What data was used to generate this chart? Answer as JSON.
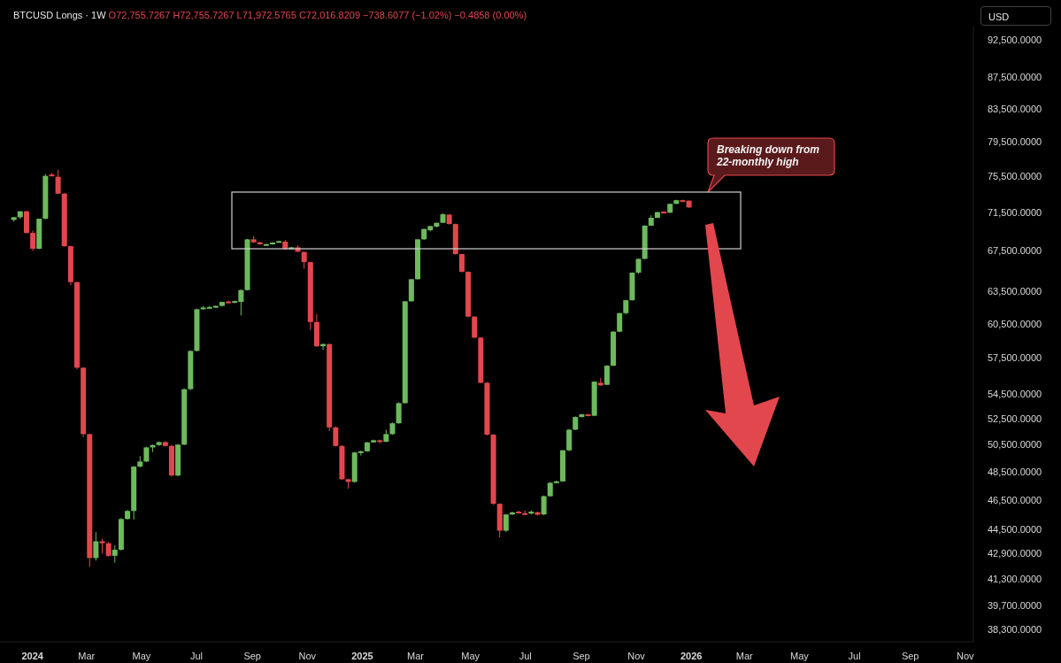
{
  "chart_data": {
    "type": "candlestick",
    "title": "BTCUSD Longs · 1W",
    "subtitle": "O72,755.7267 H72,755.7267 L71,972.5765 C72,016.8209 −738.6077 (−1.02%) −0.4858 (0.00%)",
    "ylabel": "USD",
    "log": true,
    "annotations": [
      "Breaking down from 22-monthly high"
    ],
    "x": [
      "2023-12-11",
      "2023-12-18",
      "2023-12-25",
      "2024-01-01",
      "2024-01-08",
      "2024-01-15",
      "2024-01-22",
      "2024-01-29",
      "2024-02-05",
      "2024-02-12",
      "2024-02-19",
      "2024-02-26",
      "2024-03-04",
      "2024-03-11",
      "2024-03-18",
      "2024-03-25",
      "2024-04-01",
      "2024-04-08",
      "2024-04-15",
      "2024-04-22",
      "2024-04-29",
      "2024-05-06",
      "2024-05-13",
      "2024-05-20",
      "2024-05-27",
      "2024-06-03",
      "2024-06-10",
      "2024-06-17",
      "2024-06-24",
      "2024-07-01",
      "2024-07-08",
      "2024-07-15",
      "2024-07-22",
      "2024-07-29",
      "2024-08-05",
      "2024-08-12",
      "2024-08-19",
      "2024-08-26",
      "2024-09-02",
      "2024-09-09",
      "2024-09-16",
      "2024-09-23",
      "2024-09-30",
      "2024-10-07",
      "2024-10-14",
      "2024-10-21",
      "2024-10-28",
      "2024-11-04",
      "2024-11-11",
      "2024-11-18",
      "2024-11-25",
      "2024-12-02",
      "2024-12-09",
      "2024-12-16",
      "2024-12-23",
      "2024-12-30",
      "2025-01-06",
      "2025-01-13",
      "2025-01-20",
      "2025-01-27",
      "2025-02-03",
      "2025-02-10",
      "2025-02-17",
      "2025-02-24",
      "2025-03-03",
      "2025-03-10",
      "2025-03-17",
      "2025-03-24",
      "2025-03-31",
      "2025-04-07",
      "2025-04-14",
      "2025-04-21",
      "2025-04-28",
      "2025-05-05",
      "2025-05-12",
      "2025-05-19",
      "2025-05-26",
      "2025-06-02",
      "2025-06-09",
      "2025-06-16",
      "2025-06-23",
      "2025-06-30",
      "2025-07-07",
      "2025-07-14",
      "2025-07-21",
      "2025-07-28",
      "2025-08-04",
      "2025-08-11",
      "2025-08-18",
      "2025-08-25",
      "2025-09-01",
      "2025-09-08",
      "2025-09-15",
      "2025-09-22",
      "2025-09-29",
      "2025-10-06",
      "2025-10-13",
      "2025-10-20",
      "2025-10-27",
      "2025-11-03",
      "2025-11-10",
      "2025-11-17",
      "2025-11-24",
      "2025-12-01",
      "2025-12-08",
      "2025-12-15",
      "2025-12-22",
      "2025-12-29"
    ],
    "ohlc": [
      [
        70680,
        70980,
        70500,
        70970
      ],
      [
        70970,
        71600,
        70780,
        71600
      ],
      [
        71600,
        71650,
        69250,
        69320
      ],
      [
        69320,
        69570,
        67460,
        67700
      ],
      [
        67700,
        70810,
        67650,
        70810
      ],
      [
        70810,
        75700,
        70750,
        75500
      ],
      [
        75650,
        75830,
        75450,
        75500
      ],
      [
        75400,
        76200,
        73450,
        73520
      ],
      [
        73520,
        73600,
        67900,
        67960
      ],
      [
        67960,
        68000,
        64120,
        64400
      ],
      [
        64400,
        64450,
        56530,
        56660
      ],
      [
        56660,
        56700,
        51080,
        51300
      ],
      [
        51300,
        51350,
        42060,
        42620
      ],
      [
        42620,
        44300,
        42460,
        43700
      ],
      [
        43700,
        43870,
        42900,
        43570
      ],
      [
        43570,
        43660,
        42700,
        42760
      ],
      [
        42760,
        43430,
        42330,
        43150
      ],
      [
        43150,
        45250,
        43100,
        45180
      ],
      [
        45180,
        45800,
        45150,
        45730
      ],
      [
        45730,
        48900,
        45140,
        48870
      ],
      [
        48870,
        49630,
        48800,
        49240
      ],
      [
        49240,
        50350,
        49200,
        50290
      ],
      [
        50290,
        50500,
        49950,
        50470
      ],
      [
        50470,
        50750,
        50400,
        50690
      ],
      [
        50690,
        50760,
        50350,
        50400
      ],
      [
        50400,
        50500,
        48150,
        48220
      ],
      [
        48220,
        50550,
        48150,
        50500
      ],
      [
        50500,
        54900,
        50450,
        54870
      ],
      [
        54870,
        58150,
        54800,
        58100
      ],
      [
        58100,
        61900,
        58050,
        61840
      ],
      [
        61840,
        62150,
        61800,
        62000
      ],
      [
        62000,
        62150,
        61950,
        62050
      ],
      [
        62050,
        62200,
        61950,
        62150
      ],
      [
        62150,
        62550,
        62100,
        62520
      ],
      [
        62560,
        62650,
        62400,
        62480
      ],
      [
        62450,
        62650,
        62400,
        62600
      ],
      [
        62520,
        63700,
        61270,
        63640
      ],
      [
        63640,
        68700,
        63600,
        68660
      ],
      [
        68660,
        69020,
        68300,
        68350
      ],
      [
        68350,
        68400,
        68100,
        68150
      ],
      [
        68120,
        68220,
        68080,
        68170
      ],
      [
        68150,
        68380,
        68100,
        68330
      ],
      [
        68420,
        68520,
        68380,
        68480
      ],
      [
        68420,
        68600,
        67600,
        67660
      ],
      [
        67660,
        67880,
        67600,
        67840
      ],
      [
        67840,
        68050,
        67350,
        67400
      ],
      [
        67370,
        67420,
        65700,
        66360
      ],
      [
        66360,
        66400,
        59930,
        60670
      ],
      [
        60670,
        61400,
        58450,
        58510
      ],
      [
        58510,
        58750,
        58180,
        58700
      ],
      [
        58700,
        58750,
        51530,
        51820
      ],
      [
        51820,
        51900,
        50350,
        50400
      ],
      [
        50400,
        50450,
        47900,
        47950
      ],
      [
        47950,
        48000,
        47280,
        47760
      ],
      [
        47760,
        49950,
        47700,
        49910
      ],
      [
        49910,
        50050,
        49680,
        50000
      ],
      [
        50000,
        50700,
        49950,
        50670
      ],
      [
        50670,
        50880,
        50650,
        50830
      ],
      [
        50830,
        50880,
        50600,
        50720
      ],
      [
        50720,
        51640,
        50680,
        51300
      ],
      [
        51300,
        52200,
        51250,
        52140
      ],
      [
        52140,
        53800,
        52100,
        53735
      ],
      [
        53735,
        62600,
        53700,
        62580
      ],
      [
        62580,
        64700,
        62550,
        64685
      ],
      [
        64685,
        68700,
        64650,
        68660
      ],
      [
        68660,
        69750,
        68600,
        69730
      ],
      [
        69600,
        70060,
        69480,
        70040
      ],
      [
        69980,
        70400,
        69900,
        70380
      ],
      [
        70380,
        71380,
        70350,
        71280
      ],
      [
        71250,
        71300,
        70200,
        70250
      ],
      [
        70250,
        70300,
        67100,
        67160
      ],
      [
        67160,
        67200,
        65350,
        65400
      ],
      [
        65400,
        65450,
        61100,
        61160
      ],
      [
        61160,
        61200,
        59200,
        59270
      ],
      [
        59270,
        59300,
        55350,
        55400
      ],
      [
        55400,
        55450,
        51200,
        51260
      ],
      [
        51260,
        51300,
        46150,
        46220
      ],
      [
        46220,
        46250,
        43950,
        44400
      ],
      [
        44400,
        45520,
        44300,
        45490
      ],
      [
        45490,
        45680,
        45450,
        45630
      ],
      [
        45680,
        45760,
        45560,
        45600
      ],
      [
        45580,
        45760,
        45450,
        45490
      ],
      [
        45550,
        45760,
        45500,
        45680
      ],
      [
        45640,
        45680,
        45420,
        45470
      ],
      [
        45490,
        46800,
        45450,
        46750
      ],
      [
        46750,
        47750,
        46700,
        47695
      ],
      [
        47700,
        47850,
        47650,
        47800
      ],
      [
        47800,
        50100,
        47750,
        50070
      ],
      [
        50070,
        51700,
        50000,
        51641
      ],
      [
        51641,
        52680,
        51600,
        52630
      ],
      [
        52630,
        52880,
        52600,
        52840
      ],
      [
        52840,
        52880,
        52700,
        52730
      ],
      [
        52730,
        55520,
        52700,
        55490
      ],
      [
        55400,
        55800,
        55150,
        55180
      ],
      [
        55230,
        56880,
        55200,
        56830
      ],
      [
        56830,
        59850,
        56800,
        59800
      ],
      [
        59800,
        61520,
        59750,
        61480
      ],
      [
        61480,
        62720,
        61350,
        62680
      ],
      [
        62680,
        65350,
        62650,
        65320
      ],
      [
        65320,
        66720,
        65200,
        66680
      ],
      [
        66680,
        70120,
        66650,
        70080
      ],
      [
        70080,
        71180,
        70050,
        70910
      ],
      [
        70910,
        71550,
        70880,
        71510
      ],
      [
        71560,
        71620,
        71420,
        71450
      ],
      [
        71450,
        72450,
        71420,
        72400
      ],
      [
        72400,
        72850,
        72380,
        72800
      ],
      [
        72800,
        72850,
        72700,
        72755
      ],
      [
        72755.7267,
        72755.7267,
        71972.5765,
        72016.8209
      ]
    ],
    "colors": [
      "#6cba5c",
      "#6cba5c",
      "#e2474d",
      "#e2474d",
      "#6cba5c",
      "#6cba5c",
      "#e2474d",
      "#e2474d",
      "#e2474d",
      "#e2474d",
      "#e2474d",
      "#e2474d",
      "#e2474d",
      "#6cba5c",
      "#e2474d",
      "#e2474d",
      "#6cba5c",
      "#6cba5c",
      "#6cba5c",
      "#6cba5c",
      "#6cba5c",
      "#6cba5c",
      "#6cba5c",
      "#6cba5c",
      "#e2474d",
      "#e2474d",
      "#6cba5c",
      "#6cba5c",
      "#6cba5c",
      "#6cba5c",
      "#6cba5c",
      "#6cba5c",
      "#6cba5c",
      "#6cba5c",
      "#e2474d",
      "#6cba5c",
      "#6cba5c",
      "#6cba5c",
      "#e2474d",
      "#e2474d",
      "#6cba5c",
      "#6cba5c",
      "#6cba5c",
      "#e2474d",
      "#6cba5c",
      "#e2474d",
      "#e2474d",
      "#e2474d",
      "#e2474d",
      "#6cba5c",
      "#e2474d",
      "#e2474d",
      "#e2474d",
      "#e2474d",
      "#6cba5c",
      "#6cba5c",
      "#6cba5c",
      "#6cba5c",
      "#e2474d",
      "#6cba5c",
      "#6cba5c",
      "#6cba5c",
      "#6cba5c",
      "#6cba5c",
      "#6cba5c",
      "#6cba5c",
      "#6cba5c",
      "#6cba5c",
      "#6cba5c",
      "#e2474d",
      "#e2474d",
      "#e2474d",
      "#e2474d",
      "#e2474d",
      "#e2474d",
      "#e2474d",
      "#e2474d",
      "#e2474d",
      "#6cba5c",
      "#6cba5c",
      "#e2474d",
      "#e2474d",
      "#6cba5c",
      "#e2474d",
      "#6cba5c",
      "#6cba5c",
      "#6cba5c",
      "#6cba5c",
      "#6cba5c",
      "#6cba5c",
      "#6cba5c",
      "#e2474d",
      "#6cba5c",
      "#e2474d",
      "#6cba5c",
      "#6cba5c",
      "#6cba5c",
      "#6cba5c",
      "#6cba5c",
      "#6cba5c",
      "#6cba5c",
      "#6cba5c",
      "#6cba5c",
      "#e2474d",
      "#6cba5c",
      "#6cba5c",
      "#e2474d",
      "#e2474d"
    ],
    "xlim": [
      "2023-11-26",
      "2026-11-10"
    ],
    "xticks": [
      {
        "value": "2024-01-01",
        "label": "2024"
      },
      {
        "value": "2024-03-01",
        "label": "Mar"
      },
      {
        "value": "2024-05-01",
        "label": "May"
      },
      {
        "value": "2024-07-01",
        "label": "Jul"
      },
      {
        "value": "2024-09-01",
        "label": "Sep"
      },
      {
        "value": "2024-11-01",
        "label": "Nov"
      },
      {
        "value": "2025-01-01",
        "label": "2025"
      },
      {
        "value": "2025-03-01",
        "label": "Mar"
      },
      {
        "value": "2025-05-01",
        "label": "May"
      },
      {
        "value": "2025-07-01",
        "label": "Jul"
      },
      {
        "value": "2025-09-01",
        "label": "Sep"
      },
      {
        "value": "2025-11-01",
        "label": "Nov"
      },
      {
        "value": "2026-01-01",
        "label": "2026"
      },
      {
        "value": "2026-03-01",
        "label": "Mar"
      },
      {
        "value": "2026-05-01",
        "label": "May"
      },
      {
        "value": "2026-07-01",
        "label": "Jul"
      },
      {
        "value": "2026-09-01",
        "label": "Sep"
      },
      {
        "value": "2026-11-01",
        "label": "Nov"
      }
    ],
    "ylim": [
      37600,
      94400
    ],
    "yticks": [
      {
        "value": 92500,
        "label": "92,500.0000"
      },
      {
        "value": 87500,
        "label": "87,500.0000"
      },
      {
        "value": 83500,
        "label": "83,500.0000"
      },
      {
        "value": 79500,
        "label": "79,500.0000"
      },
      {
        "value": 75500,
        "label": "75,500.0000"
      },
      {
        "value": 71500,
        "label": "71,500.0000"
      },
      {
        "value": 67500,
        "label": "67,500.0000"
      },
      {
        "value": 63500,
        "label": "63,500.0000"
      },
      {
        "value": 60500,
        "label": "60,500.0000"
      },
      {
        "value": 57500,
        "label": "57,500.0000"
      },
      {
        "value": 54500,
        "label": "54,500.0000"
      },
      {
        "value": 52500,
        "label": "52,500.0000"
      },
      {
        "value": 50500,
        "label": "50,500.0000"
      },
      {
        "value": 48500,
        "label": "48,500.0000"
      },
      {
        "value": 46500,
        "label": "46,500.0000"
      },
      {
        "value": 44500,
        "label": "44,500.0000"
      },
      {
        "value": 42900,
        "label": "42,900.0000"
      },
      {
        "value": 41300,
        "label": "41,300.0000"
      },
      {
        "value": 39700,
        "label": "39,700.0000"
      },
      {
        "value": 38300,
        "label": "38,300.0000"
      }
    ]
  }
}
